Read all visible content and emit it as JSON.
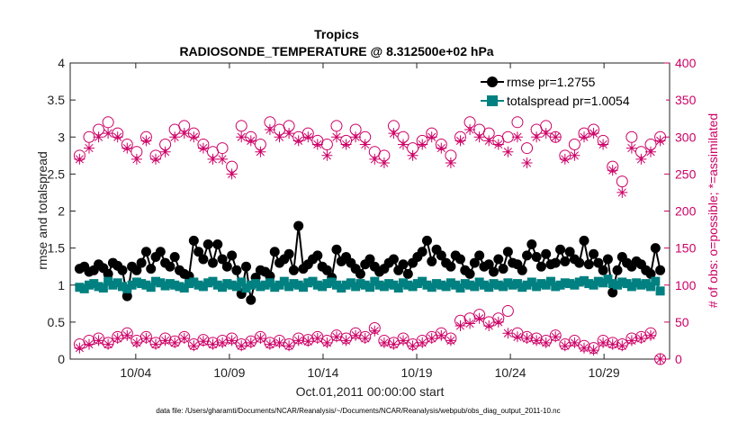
{
  "chart_data": {
    "type": "line",
    "title": "Tropics",
    "subtitle": "RADIOSONDE_TEMPERATURE @ 8.312500e+02 hPa",
    "xlabel": "Oct.01,2011 00:00:00 start",
    "ylabel_left": "rmse and totalspread",
    "ylabel_right": "# of obs: o=possible; *=assimilated",
    "footer": "data file: /Users/gharamti/Documents/NCAR/Reanalysis/~/Documents/NCAR/Reanalysis/webpub/obs_diag_output_2011-10.nc",
    "xlim": [
      0.5,
      32.5
    ],
    "ylim_left": [
      0,
      4
    ],
    "ylim_right": [
      0,
      400
    ],
    "x_ticks": [
      {
        "value": 4,
        "label": "10/04"
      },
      {
        "value": 9,
        "label": "10/09"
      },
      {
        "value": 14,
        "label": "10/14"
      },
      {
        "value": 19,
        "label": "10/19"
      },
      {
        "value": 24,
        "label": "10/24"
      },
      {
        "value": 29,
        "label": "10/29"
      }
    ],
    "y_ticks_left": [
      "0",
      "0.5",
      "1",
      "1.5",
      "2",
      "2.5",
      "3",
      "3.5",
      "4"
    ],
    "y_ticks_right": [
      "0",
      "50",
      "100",
      "150",
      "200",
      "250",
      "300",
      "350",
      "400"
    ],
    "legend": {
      "location": "top-right",
      "entries": [
        "rmse pr=1.2755",
        "totalspread pr=1.0054"
      ]
    },
    "colors": {
      "rmse": "#000000",
      "spread": "#008080",
      "obs": "#cc0066"
    },
    "series": [
      {
        "name": "rmse",
        "axis": "left",
        "values": [
          1.22,
          1.25,
          1.18,
          1.2,
          1.28,
          1.23,
          1.15,
          1.3,
          1.26,
          1.2,
          0.85,
          1.25,
          1.2,
          1.3,
          1.45,
          1.22,
          1.38,
          1.45,
          1.3,
          1.25,
          1.38,
          1.2,
          1.15,
          1.12,
          1.6,
          1.45,
          1.35,
          1.55,
          1.3,
          1.55,
          1.35,
          1.25,
          1.4,
          1.2,
          0.88,
          1.25,
          0.8,
          1.1,
          1.2,
          1.18,
          1.12,
          1.45,
          1.3,
          1.35,
          1.42,
          1.2,
          1.8,
          1.22,
          1.28,
          1.35,
          1.4,
          1.25,
          1.2,
          1.1,
          1.48,
          1.32,
          1.38,
          1.3,
          1.22,
          1.15,
          1.28,
          1.35,
          1.25,
          1.18,
          1.22,
          1.3,
          1.35,
          1.2,
          1.28,
          1.15,
          1.3,
          1.38,
          1.45,
          1.6,
          1.32,
          1.48,
          1.4,
          1.3,
          1.25,
          1.4,
          1.35,
          1.2,
          1.15,
          1.3,
          1.4,
          1.25,
          1.28,
          1.18,
          1.35,
          1.22,
          1.45,
          1.3,
          1.28,
          1.2,
          1.4,
          1.55,
          1.38,
          1.25,
          1.42,
          1.28,
          1.3,
          1.48,
          1.32,
          1.45,
          1.35,
          1.3,
          1.6,
          1.28,
          1.42,
          1.3,
          1.2,
          1.35,
          0.9,
          1.2,
          1.38,
          1.3,
          1.25,
          1.32,
          1.28,
          1.2,
          1.15,
          1.5,
          1.2
        ]
      },
      {
        "name": "totalspread",
        "axis": "left",
        "values": [
          0.97,
          0.95,
          1.0,
          1.02,
          0.98,
          0.96,
          1.05,
          1.0,
          1.03,
          0.98,
          0.95,
          1.0,
          1.04,
          1.02,
          1.0,
          0.97,
          1.05,
          1.03,
          0.99,
          1.02,
          1.0,
          0.98,
          0.96,
          1.02,
          1.04,
          1.0,
          0.98,
          1.03,
          1.05,
          1.0,
          0.97,
          1.02,
          1.0,
          0.98,
          1.04,
          0.96,
          1.0,
          1.02,
          0.98,
          1.0,
          1.03,
          0.97,
          1.0,
          1.05,
          0.98,
          1.02,
          1.0,
          0.97,
          1.03,
          1.05,
          1.0,
          0.98,
          1.02,
          1.04,
          1.0,
          0.96,
          1.0,
          1.03,
          0.98,
          1.02,
          1.0,
          0.97,
          1.05,
          1.0,
          0.98,
          1.02,
          1.0,
          0.96,
          1.03,
          1.0,
          0.98,
          1.02,
          1.05,
          1.0,
          0.97,
          1.02,
          1.0,
          0.98,
          1.03,
          1.0,
          0.96,
          1.02,
          1.0,
          0.98,
          1.04,
          1.0,
          0.97,
          1.02,
          1.0,
          0.98,
          1.03,
          1.0,
          1.02,
          0.97,
          1.0,
          1.04,
          0.98,
          1.02,
          1.0,
          1.05,
          0.98,
          1.0,
          1.03,
          1.02,
          1.0,
          1.04,
          1.06,
          1.02,
          1.0,
          1.05,
          1.03,
          1.08,
          1.02,
          1.0,
          1.04,
          1.02,
          0.98,
          1.03,
          1.0,
          1.02,
          0.98,
          1.05,
          0.92
        ]
      },
      {
        "name": "obs_possible_06",
        "axis": "right",
        "marker": "open-circle",
        "values": [
          275,
          300,
          310,
          320,
          305,
          290,
          280,
          300,
          275,
          290,
          310,
          315,
          305,
          290,
          280,
          285,
          260,
          315,
          300,
          290,
          320,
          310,
          315,
          300,
          305,
          295,
          290,
          315,
          295,
          310,
          300,
          280,
          275,
          315,
          300,
          285,
          295,
          305,
          290,
          275,
          300,
          320,
          310,
          305,
          295,
          300,
          320,
          285,
          310,
          315,
          300,
          275,
          290,
          305,
          310,
          295,
          260,
          240,
          300,
          280,
          290,
          300
        ]
      },
      {
        "name": "obs_assimilated_06",
        "axis": "right",
        "marker": "star",
        "values": [
          270,
          285,
          300,
          305,
          300,
          285,
          270,
          295,
          270,
          280,
          300,
          305,
          300,
          285,
          270,
          270,
          250,
          300,
          295,
          280,
          310,
          300,
          305,
          295,
          300,
          290,
          275,
          300,
          290,
          300,
          290,
          270,
          265,
          305,
          290,
          275,
          290,
          300,
          285,
          265,
          295,
          310,
          300,
          295,
          290,
          280,
          300,
          265,
          300,
          305,
          300,
          270,
          275,
          300,
          305,
          290,
          255,
          225,
          285,
          270,
          280,
          295
        ]
      },
      {
        "name": "obs_possible_18",
        "axis": "right",
        "marker": "open-circle",
        "values": [
          20,
          25,
          28,
          22,
          30,
          35,
          25,
          30,
          22,
          28,
          24,
          30,
          20,
          26,
          22,
          25,
          28,
          20,
          24,
          30,
          22,
          25,
          20,
          28,
          26,
          30,
          25,
          32,
          28,
          35,
          30,
          42,
          25,
          22,
          28,
          20,
          25,
          30,
          35,
          28,
          52,
          55,
          60,
          50,
          55,
          65,
          35,
          30,
          28,
          25,
          32,
          20,
          25,
          18,
          15,
          25,
          22,
          20,
          28,
          30,
          35,
          0
        ]
      },
      {
        "name": "obs_assimilated_18",
        "axis": "right",
        "marker": "star",
        "values": [
          15,
          20,
          25,
          20,
          28,
          32,
          22,
          28,
          20,
          25,
          22,
          28,
          18,
          24,
          20,
          22,
          25,
          18,
          22,
          28,
          20,
          22,
          18,
          25,
          24,
          28,
          22,
          30,
          25,
          32,
          28,
          38,
          22,
          20,
          25,
          18,
          22,
          28,
          32,
          25,
          45,
          48,
          55,
          45,
          50,
          35,
          30,
          28,
          25,
          22,
          30,
          18,
          22,
          15,
          12,
          22,
          20,
          18,
          25,
          28,
          32,
          0
        ]
      }
    ]
  }
}
